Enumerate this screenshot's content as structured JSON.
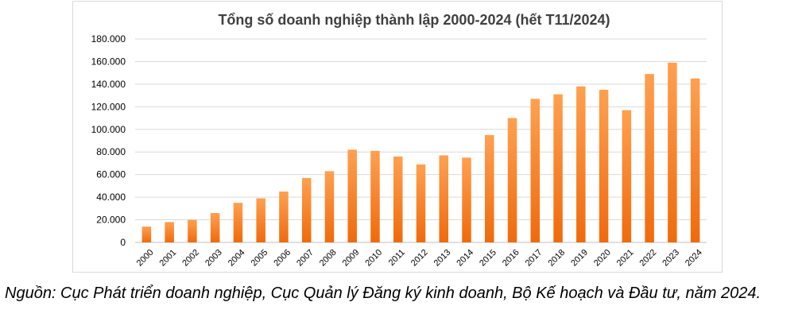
{
  "chart_data": {
    "type": "bar",
    "title": "Tổng số doanh nghiệp thành lập 2000-2024 (hết T11/2024)",
    "categories": [
      "2000",
      "2001",
      "2002",
      "2003",
      "2004",
      "2005",
      "2006",
      "2007",
      "2008",
      "2009",
      "2010",
      "2011",
      "2012",
      "2013",
      "2014",
      "2015",
      "2016",
      "2017",
      "2018",
      "2019",
      "2020",
      "2021",
      "2022",
      "2023",
      "2024"
    ],
    "values": [
      14000,
      18000,
      20000,
      26000,
      35000,
      39000,
      45000,
      57000,
      63000,
      82000,
      81000,
      76000,
      69000,
      77000,
      75000,
      95000,
      110000,
      127000,
      131000,
      138000,
      135000,
      117000,
      149000,
      159000,
      145000
    ],
    "y_ticks": [
      "0",
      "20.000",
      "40.000",
      "60.000",
      "80.000",
      "100.000",
      "120.000",
      "140.000",
      "160.000",
      "180.000"
    ],
    "ylim": [
      0,
      180000
    ],
    "grid": true,
    "legend": "none",
    "bar_color_top": "#FFA050",
    "bar_color_bottom": "#F06A0C"
  },
  "caption": "Nguồn: Cục Phát triển doanh nghiệp, Cục Quản lý Đăng ký kinh doanh, Bộ Kế hoạch và Đầu tư, năm 2024."
}
